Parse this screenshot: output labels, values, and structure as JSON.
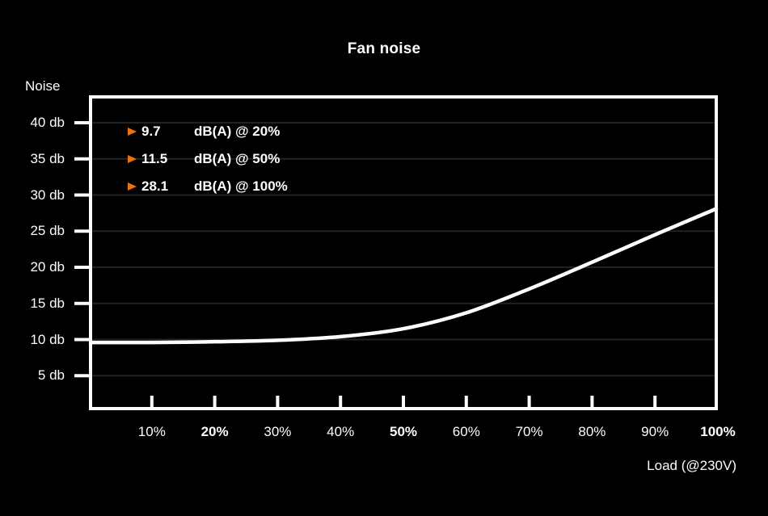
{
  "title": "Fan noise",
  "y_axis_title": "Noise",
  "x_axis_title": "Load (@230V)",
  "colors": {
    "background": "#000000",
    "foreground": "#fdfdfd",
    "accent_orange": "#ee720b",
    "gridline": "#222222"
  },
  "legend": {
    "rows": [
      {
        "marker": "right-triangle-icon",
        "value": "9.7",
        "label": "dB(A) @ 20%"
      },
      {
        "marker": "right-triangle-icon",
        "value": "11.5",
        "label": "dB(A) @ 50%"
      },
      {
        "marker": "right-triangle-icon",
        "value": "28.1",
        "label": "dB(A) @ 100%"
      }
    ]
  },
  "chart_data": {
    "type": "line",
    "title": "Fan noise",
    "xlabel": "Load (@230V)",
    "ylabel": "Noise",
    "series": [
      {
        "name": "Fan noise dB(A) vs load",
        "x": [
          0,
          10,
          20,
          30,
          40,
          50,
          60,
          70,
          80,
          90,
          100
        ],
        "values": [
          9.6,
          9.6,
          9.7,
          9.9,
          10.4,
          11.5,
          13.7,
          17.0,
          20.7,
          24.5,
          28.1
        ]
      }
    ],
    "highlighted_points": [
      {
        "x_pct": 20,
        "db": 9.7
      },
      {
        "x_pct": 50,
        "db": 11.5
      },
      {
        "x_pct": 100,
        "db": 28.1
      }
    ],
    "xlim": [
      0,
      100
    ],
    "ylim": [
      0,
      43.8
    ],
    "y_ticks": [
      {
        "value": 40,
        "label": "40 db"
      },
      {
        "value": 35,
        "label": "35 db"
      },
      {
        "value": 30,
        "label": "30 db"
      },
      {
        "value": 25,
        "label": "25 db"
      },
      {
        "value": 20,
        "label": "20 db"
      },
      {
        "value": 15,
        "label": "15 db"
      },
      {
        "value": 10,
        "label": "10 db"
      },
      {
        "value": 5,
        "label": "5 db"
      }
    ],
    "x_ticks": [
      {
        "value": 10,
        "label": "10%",
        "bold": false
      },
      {
        "value": 20,
        "label": "20%",
        "bold": true
      },
      {
        "value": 30,
        "label": "30%",
        "bold": false
      },
      {
        "value": 40,
        "label": "40%",
        "bold": false
      },
      {
        "value": 50,
        "label": "50%",
        "bold": true
      },
      {
        "value": 60,
        "label": "60%",
        "bold": false
      },
      {
        "value": 70,
        "label": "70%",
        "bold": false
      },
      {
        "value": 80,
        "label": "80%",
        "bold": false
      },
      {
        "value": 90,
        "label": "90%",
        "bold": false
      },
      {
        "value": 100,
        "label": "100%",
        "bold": true
      }
    ],
    "grid": "horizontal-faint",
    "legend_position": "top-left-inside"
  }
}
